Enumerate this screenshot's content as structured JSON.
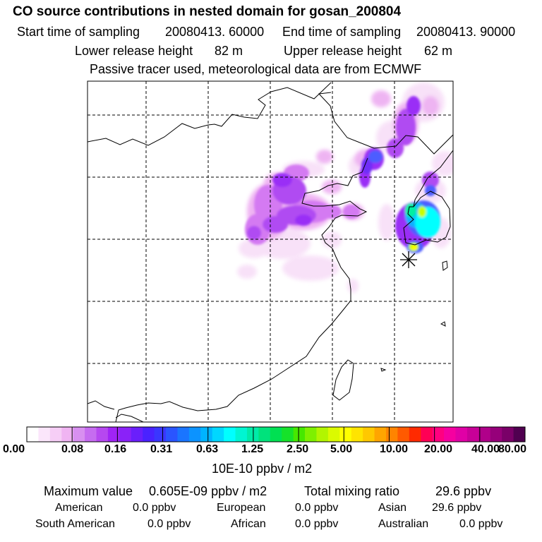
{
  "header": {
    "title": "CO  source contributions in nested domain for gosan_200804",
    "start_label": "Start time of sampling",
    "start_value": "20080413. 60000",
    "end_label": "End time of sampling",
    "end_value": "20080413. 90000",
    "lower_label": "Lower release height",
    "lower_value": "82 m",
    "upper_label": "Upper release height",
    "upper_value": "62 m",
    "tracer_note": "Passive tracer used, meteorological data are from ECMWF"
  },
  "colorbar": {
    "labels": [
      "0.00",
      "0.08",
      "0.16",
      "0.31",
      "0.63",
      "1.25",
      "2.50",
      "5.00",
      "10.00",
      "20.00",
      "40.00",
      "80.00"
    ],
    "units": "10E-10 ppbv / m2",
    "colors": [
      "#ffffff",
      "#fbe6fb",
      "#f6cef6",
      "#f0b4f2",
      "#d890f0",
      "#c66cf0",
      "#b648f0",
      "#a024f5",
      "#8a22f8",
      "#6a1ffb",
      "#4a22ff",
      "#3a36ff",
      "#2a55ff",
      "#1a75ff",
      "#0c93ff",
      "#00b4ff",
      "#00d7ff",
      "#00ffff",
      "#00f5d2",
      "#00eba8",
      "#00e27c",
      "#00e052",
      "#16e22a",
      "#46e800",
      "#7ef000",
      "#b2f500",
      "#dbfa00",
      "#ffff00",
      "#ffe400",
      "#ffc800",
      "#ffa500",
      "#ff8400",
      "#ff5a00",
      "#ff2a00",
      "#ff0055",
      "#ff0080",
      "#f500a0",
      "#e000a6",
      "#c80098",
      "#b0008a",
      "#96007a",
      "#7a0068",
      "#500050"
    ]
  },
  "stats": {
    "max_label": "Maximum value",
    "max_value": "0.605E-09 ppbv / m2",
    "total_label": "Total mixing ratio",
    "total_value": "29.6 ppbv"
  },
  "regions": [
    {
      "name": "American",
      "value": "0.0 ppbv"
    },
    {
      "name": "European",
      "value": "0.0 ppbv"
    },
    {
      "name": "Asian",
      "value": "29.6 ppbv"
    },
    {
      "name": "South American",
      "value": "0.0 ppbv"
    },
    {
      "name": "African",
      "value": "0.0 ppbv"
    },
    {
      "name": "Australian",
      "value": "0.0 ppbv"
    }
  ],
  "map": {
    "receptor_marker": "asterisk-marker",
    "plume_colors": [
      "#f8e0f8",
      "#eeb0f2",
      "#d47af2",
      "#b04cf2",
      "#9a2ef6",
      "#6f2ff8",
      "#4d5dff",
      "#0bb0ff",
      "#00ffff",
      "#00f0a0",
      "#c8ff00",
      "#ffff00"
    ]
  }
}
